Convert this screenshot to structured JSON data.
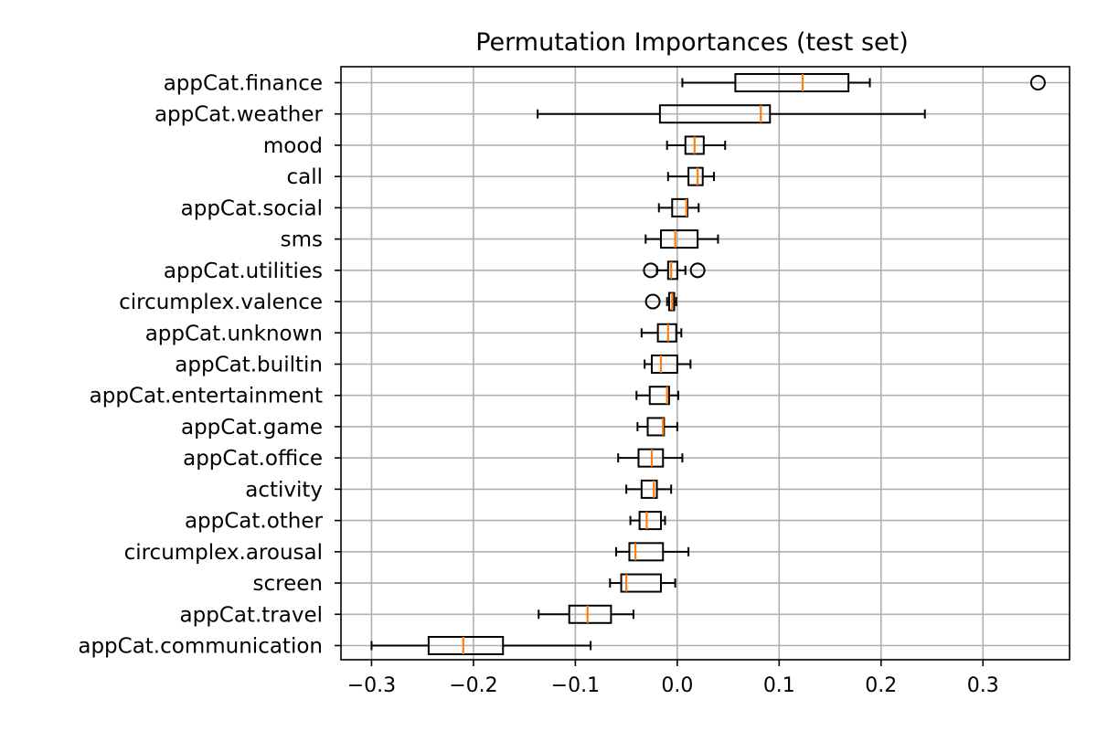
{
  "chart_data": {
    "type": "boxplot",
    "orientation": "horizontal",
    "title": "Permutation Importances (test set)",
    "xlabel": "",
    "ylabel": "",
    "xlim": [
      -0.33,
      0.385
    ],
    "xticks": [
      -0.3,
      -0.2,
      -0.1,
      0.0,
      0.1,
      0.2,
      0.3
    ],
    "xtick_labels": [
      "−0.3",
      "−0.2",
      "−0.1",
      "0.0",
      "0.1",
      "0.2",
      "0.3"
    ],
    "grid": true,
    "colors": {
      "box": "#000000",
      "median": "#ff7f0e",
      "grid": "#b0b0b0"
    },
    "categories": [
      "appCat.finance",
      "appCat.weather",
      "mood",
      "call",
      "appCat.social",
      "sms",
      "appCat.utilities",
      "circumplex.valence",
      "appCat.unknown",
      "appCat.builtin",
      "appCat.entertainment",
      "appCat.game",
      "appCat.office",
      "activity",
      "appCat.other",
      "circumplex.arousal",
      "screen",
      "appCat.travel",
      "appCat.communication"
    ],
    "boxes": [
      {
        "label": "appCat.finance",
        "whislo": 0.005,
        "q1": 0.057,
        "med": 0.123,
        "q3": 0.168,
        "whishi": 0.189,
        "fliers": [
          0.354
        ]
      },
      {
        "label": "appCat.weather",
        "whislo": -0.137,
        "q1": -0.017,
        "med": 0.082,
        "q3": 0.091,
        "whishi": 0.243,
        "fliers": []
      },
      {
        "label": "mood",
        "whislo": -0.01,
        "q1": 0.008,
        "med": 0.017,
        "q3": 0.026,
        "whishi": 0.047,
        "fliers": []
      },
      {
        "label": "call",
        "whislo": -0.009,
        "q1": 0.011,
        "med": 0.02,
        "q3": 0.025,
        "whishi": 0.036,
        "fliers": []
      },
      {
        "label": "appCat.social",
        "whislo": -0.018,
        "q1": -0.005,
        "med": 0.009,
        "q3": 0.01,
        "whishi": 0.021,
        "fliers": []
      },
      {
        "label": "sms",
        "whislo": -0.031,
        "q1": -0.016,
        "med": -0.002,
        "q3": 0.02,
        "whishi": 0.04,
        "fliers": []
      },
      {
        "label": "appCat.utilities",
        "whislo": -0.02,
        "q1": -0.009,
        "med": -0.006,
        "q3": 0.0,
        "whishi": 0.008,
        "fliers": [
          -0.026,
          0.02
        ]
      },
      {
        "label": "circumplex.valence",
        "whislo": -0.01,
        "q1": -0.008,
        "med": -0.005,
        "q3": -0.003,
        "whishi": -0.001,
        "fliers": [
          -0.024
        ]
      },
      {
        "label": "appCat.unknown",
        "whislo": -0.035,
        "q1": -0.019,
        "med": -0.009,
        "q3": -0.001,
        "whishi": 0.004,
        "fliers": []
      },
      {
        "label": "appCat.builtin",
        "whislo": -0.032,
        "q1": -0.025,
        "med": -0.016,
        "q3": 0.0,
        "whishi": 0.013,
        "fliers": []
      },
      {
        "label": "appCat.entertainment",
        "whislo": -0.04,
        "q1": -0.027,
        "med": -0.01,
        "q3": -0.008,
        "whishi": 0.001,
        "fliers": []
      },
      {
        "label": "appCat.game",
        "whislo": -0.039,
        "q1": -0.029,
        "med": -0.014,
        "q3": -0.013,
        "whishi": 0.0,
        "fliers": []
      },
      {
        "label": "appCat.office",
        "whislo": -0.058,
        "q1": -0.038,
        "med": -0.025,
        "q3": -0.014,
        "whishi": 0.005,
        "fliers": []
      },
      {
        "label": "activity",
        "whislo": -0.05,
        "q1": -0.035,
        "med": -0.023,
        "q3": -0.02,
        "whishi": -0.006,
        "fliers": []
      },
      {
        "label": "appCat.other",
        "whislo": -0.046,
        "q1": -0.037,
        "med": -0.03,
        "q3": -0.016,
        "whishi": -0.012,
        "fliers": []
      },
      {
        "label": "circumplex.arousal",
        "whislo": -0.06,
        "q1": -0.047,
        "med": -0.041,
        "q3": -0.014,
        "whishi": 0.011,
        "fliers": []
      },
      {
        "label": "screen",
        "whislo": -0.066,
        "q1": -0.055,
        "med": -0.05,
        "q3": -0.016,
        "whishi": -0.002,
        "fliers": []
      },
      {
        "label": "appCat.travel",
        "whislo": -0.136,
        "q1": -0.106,
        "med": -0.088,
        "q3": -0.065,
        "whishi": -0.043,
        "fliers": []
      },
      {
        "label": "appCat.communication",
        "whislo": -0.3,
        "q1": -0.244,
        "med": -0.21,
        "q3": -0.171,
        "whishi": -0.085,
        "fliers": []
      }
    ]
  }
}
